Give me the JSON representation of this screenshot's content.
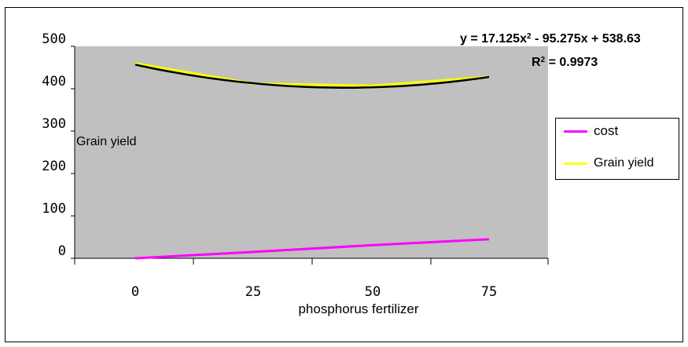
{
  "chart_data": {
    "type": "line",
    "x": [
      0,
      25,
      50,
      75
    ],
    "xlabel": "phosphorus fertilizer",
    "ylabel": "",
    "ylim": [
      0,
      500
    ],
    "yticks": [
      "0",
      "100",
      "200",
      "300",
      "400",
      "500"
    ],
    "xticks": [
      "0",
      "25",
      "50",
      "75"
    ],
    "grid": false,
    "legend_position": "right",
    "background": "#c0c0c0",
    "annotation": "Grain yield",
    "trendline": {
      "equation_prefix": "y = 17.125x",
      "equation_exp": "2",
      "equation_suffix": " - 95.275x + 538.63",
      "r2_prefix": "R",
      "r2_exp": "2",
      "r2_suffix": " = 0.9973",
      "color": "#000000"
    },
    "series": [
      {
        "name": "cost",
        "color": "#ff00ff",
        "values": [
          0,
          15,
          31,
          45
        ]
      },
      {
        "name": "Grain yield",
        "color": "#ffff00",
        "values": [
          460,
          412,
          407,
          428
        ]
      }
    ]
  }
}
